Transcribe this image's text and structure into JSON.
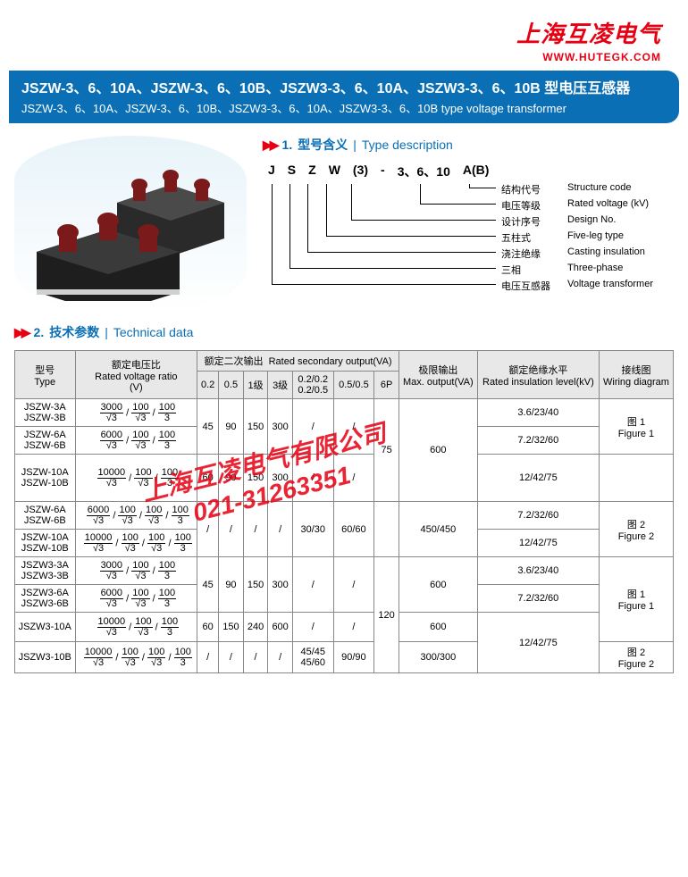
{
  "header": {
    "logo_cn": "上海互凌电气",
    "logo_url": "WWW.HUTEGK.COM"
  },
  "title_bar": {
    "line1": "JSZW-3、6、10A、JSZW-3、6、10B、JSZW3-3、6、10A、JSZW3-3、6、10B 型电压互感器",
    "line2": "JSZW-3、6、10A、JSZW-3、6、10B、JSZW3-3、6、10A、JSZW3-3、6、10B type voltage transformer"
  },
  "section1": {
    "marker": "▶▶",
    "num": "1.",
    "title_cn": "型号含义",
    "title_en": "Type description",
    "code": [
      "J",
      "S",
      "Z",
      "W",
      "(3)",
      "-",
      "3、6、10",
      "A(B)"
    ],
    "breakdown": [
      {
        "cn": "结构代号",
        "en": "Structure code"
      },
      {
        "cn": "电压等级",
        "en": "Rated voltage (kV)"
      },
      {
        "cn": "设计序号",
        "en": "Design No."
      },
      {
        "cn": "五柱式",
        "en": "Five-leg type"
      },
      {
        "cn": "浇注绝缘",
        "en": "Casting insulation"
      },
      {
        "cn": "三相",
        "en": "Three-phase"
      },
      {
        "cn": "电压互感器",
        "en": "Voltage transformer"
      }
    ]
  },
  "section2": {
    "marker": "▶▶",
    "num": "2.",
    "title_cn": "技术参数",
    "title_en": "Technical data",
    "headers": {
      "type_cn": "型号",
      "type_en": "Type",
      "ratio_cn": "额定电压比",
      "ratio_en": "Rated voltage ratio",
      "ratio_unit": "(V)",
      "sec_out_cn": "额定二次输出",
      "sec_out_en": "Rated secondary output(VA)",
      "col_02": "0.2",
      "col_05": "0.5",
      "col_1": "1级",
      "col_3": "3级",
      "col_0202": "0.2/0.2",
      "col_0205": "0.2/0.5",
      "col_0505": "0.5/0.5",
      "col_6p": "6P",
      "max_cn": "极限输出",
      "max_en": "Max. output(VA)",
      "insul_cn": "额定绝缘水平",
      "insul_en": "Rated insulation level(kV)",
      "wiring_cn": "接线图",
      "wiring_en": "Wiring diagram"
    },
    "ratios": {
      "r3000": [
        [
          "3000",
          "√3"
        ],
        [
          "100",
          "√3"
        ],
        [
          "100",
          "3"
        ]
      ],
      "r6000": [
        [
          "6000",
          "√3"
        ],
        [
          "100",
          "√3"
        ],
        [
          "100",
          "3"
        ]
      ],
      "r10000": [
        [
          "10000",
          "√3"
        ],
        [
          "100",
          "√3"
        ],
        [
          "100",
          "3"
        ]
      ],
      "r6000_4": [
        [
          "6000",
          "√3"
        ],
        [
          "100",
          "√3"
        ],
        [
          "100",
          "√3"
        ],
        [
          "100",
          "3"
        ]
      ],
      "r10000_4": [
        [
          "10000",
          "√3"
        ],
        [
          "100",
          "√3"
        ],
        [
          "100",
          "√3"
        ],
        [
          "100",
          "3"
        ]
      ]
    },
    "groups": [
      {
        "rows": [
          {
            "types": [
              "JSZW-3A",
              "JSZW-3B"
            ],
            "ratio": "r3000",
            "insul": "3.6/23/40"
          },
          {
            "types": [
              "JSZW-6A",
              "JSZW-6B"
            ],
            "ratio": "r6000",
            "insul": "7.2/32/60"
          }
        ],
        "out": [
          "45",
          "90",
          "150",
          "300",
          "/",
          "/"
        ],
        "p6": "",
        "max": "600",
        "wiring_cn": "图 1",
        "wiring_en": "Figure 1"
      },
      {
        "rows": [
          {
            "types": [
              "JSZW-10A",
              "JSZW-10B"
            ],
            "ratio": "r10000",
            "insul": "12/42/75"
          }
        ],
        "out": [
          "60",
          "90",
          "150",
          "300",
          "/",
          "/"
        ],
        "p6": "75",
        "max": "",
        "wiring_cn": "",
        "wiring_en": ""
      },
      {
        "rows": [
          {
            "types": [
              "JSZW-6A",
              "JSZW-6B"
            ],
            "ratio": "r6000_4",
            "insul": "7.2/32/60"
          },
          {
            "types": [
              "JSZW-10A",
              "JSZW-10B"
            ],
            "ratio": "r10000_4",
            "insul": "12/42/75"
          }
        ],
        "out": [
          "/",
          "/",
          "/",
          "/",
          "30/30",
          "60/60"
        ],
        "p6": "",
        "max": "450/450",
        "wiring_cn": "图 2",
        "wiring_en": "Figure 2"
      },
      {
        "rows": [
          {
            "types": [
              "JSZW3-3A",
              "JSZW3-3B"
            ],
            "ratio": "r3000",
            "insul": "3.6/23/40"
          },
          {
            "types": [
              "JSZW3-6A",
              "JSZW3-6B"
            ],
            "ratio": "r6000",
            "insul": "7.2/32/60"
          }
        ],
        "out": [
          "45",
          "90",
          "150",
          "300",
          "/",
          "/"
        ],
        "p6": "",
        "max": "600",
        "wiring_cn": "图 1",
        "wiring_en": "Figure 1"
      },
      {
        "rows": [
          {
            "types": [
              "JSZW3-10A"
            ],
            "ratio": "r10000",
            "insul": ""
          }
        ],
        "out": [
          "60",
          "150",
          "240",
          "600",
          "/",
          "/"
        ],
        "p6": "120",
        "max": "600",
        "wiring_cn": "",
        "wiring_en": "",
        "insul_span": "12/42/75"
      },
      {
        "rows": [
          {
            "types": [
              "JSZW3-10B"
            ],
            "ratio": "r10000_4",
            "insul": ""
          }
        ],
        "out": [
          "/",
          "/",
          "/",
          "/",
          "45/45<br>45/60",
          "90/90"
        ],
        "p6": "",
        "max": "300/300",
        "wiring_cn": "图 2",
        "wiring_en": "Figure 2"
      }
    ]
  },
  "watermark": {
    "l1": "上海互凌电气有限公司",
    "l2": "021-31263351"
  },
  "colors": {
    "brand_red": "#e60012",
    "brand_blue": "#0a6fb5",
    "table_border": "#888888",
    "th_bg": "#e8e8e8"
  }
}
